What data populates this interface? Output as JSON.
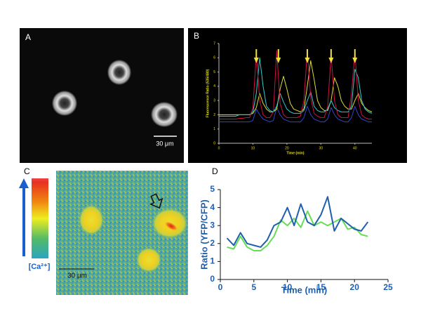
{
  "figure": {
    "panel_a": {
      "label": "A",
      "scale_bar": "30 μm"
    },
    "panel_c": {
      "label": "C",
      "scale_bar": "30 μm",
      "colorbar_label": "[Ca²⁺]"
    }
  },
  "chart_data": [
    {
      "type": "line",
      "panel_label": "B",
      "x_label": "Time (min)",
      "y_label": "Fluorescence Ratio (535/480)",
      "x": [
        0,
        1,
        2,
        3,
        4,
        5,
        6,
        7,
        8,
        9,
        10,
        11,
        12,
        13,
        14,
        15,
        16,
        17,
        18,
        19,
        20,
        21,
        22,
        23,
        24,
        25,
        26,
        27,
        28,
        29,
        30,
        31,
        32,
        33,
        34,
        35,
        36,
        37,
        38,
        39,
        40,
        41,
        42,
        43,
        44,
        45
      ],
      "series": [
        {
          "color": "#3344cc",
          "values": [
            1.5,
            1.5,
            1.5,
            1.5,
            1.5,
            1.5,
            1.5,
            1.5,
            1.5,
            1.5,
            1.6,
            2.4,
            2.0,
            1.7,
            1.6,
            1.5,
            1.6,
            2.5,
            2.0,
            1.7,
            1.6,
            1.5,
            1.5,
            1.5,
            1.5,
            1.8,
            2.6,
            2.0,
            1.7,
            1.6,
            1.5,
            1.5,
            1.7,
            2.5,
            2.0,
            1.7,
            1.6,
            1.5,
            1.5,
            1.8,
            2.6,
            2.0,
            1.7,
            1.6,
            1.5,
            1.5
          ]
        },
        {
          "color": "#dddd33",
          "values": [
            2.0,
            2.0,
            2.0,
            2.0,
            2.0,
            2.0,
            2.0,
            2.0,
            2.0,
            2.0,
            2.1,
            2.5,
            3.5,
            2.8,
            2.4,
            2.2,
            2.2,
            2.4,
            3.8,
            4.7,
            3.8,
            2.8,
            2.4,
            2.3,
            2.2,
            2.4,
            4.0,
            5.8,
            4.5,
            3.0,
            2.5,
            2.3,
            2.3,
            3.0,
            4.6,
            4.0,
            3.0,
            2.6,
            2.4,
            2.4,
            3.0,
            3.5,
            2.8,
            2.5,
            2.3,
            2.2
          ]
        },
        {
          "color": "#33cccc",
          "values": [
            1.9,
            1.9,
            1.9,
            1.9,
            1.9,
            1.9,
            2.0,
            2.0,
            2.0,
            2.0,
            2.2,
            3.5,
            6.0,
            4.0,
            2.6,
            2.3,
            2.2,
            2.6,
            3.5,
            2.9,
            2.4,
            2.2,
            2.1,
            2.1,
            2.1,
            2.3,
            3.0,
            3.6,
            2.6,
            2.3,
            2.2,
            2.2,
            2.4,
            3.0,
            2.5,
            2.3,
            2.2,
            2.2,
            2.2,
            2.6,
            5.2,
            4.6,
            3.0,
            2.4,
            2.2,
            2.1
          ]
        },
        {
          "color": "#cc1144",
          "values": [
            1.7,
            1.7,
            1.7,
            1.7,
            1.7,
            1.7,
            1.75,
            1.75,
            1.8,
            1.8,
            2.5,
            6.3,
            3.0,
            2.0,
            1.8,
            1.8,
            2.2,
            6.5,
            2.8,
            2.0,
            1.8,
            1.8,
            1.8,
            1.8,
            1.9,
            3.0,
            6.5,
            3.2,
            2.1,
            1.9,
            1.8,
            1.8,
            2.6,
            6.2,
            3.0,
            2.0,
            1.8,
            1.8,
            1.8,
            3.5,
            6.4,
            3.0,
            2.0,
            1.8,
            1.7,
            1.7
          ]
        }
      ],
      "arrows_x": [
        11,
        17.5,
        26,
        33,
        40
      ],
      "xlim": [
        0,
        45
      ],
      "xticks": [
        0,
        10,
        20,
        30,
        40
      ],
      "ylim": [
        0,
        7
      ],
      "yticks": [
        0,
        1,
        2,
        3,
        4,
        5,
        6,
        7
      ]
    },
    {
      "type": "line",
      "panel_label": "D",
      "x_label": "Time (min)",
      "y_label": "Ratio (YFP/CFP)",
      "x": [
        1,
        2,
        3,
        4,
        5,
        6,
        7,
        8,
        9,
        10,
        11,
        12,
        13,
        14,
        15,
        16,
        17,
        18,
        19,
        20,
        21,
        22
      ],
      "series": [
        {
          "color": "#66dd55",
          "values": [
            1.8,
            1.7,
            2.4,
            1.8,
            1.6,
            1.6,
            1.9,
            2.4,
            3.3,
            3.0,
            3.4,
            2.9,
            3.8,
            3.0,
            3.2,
            3.0,
            3.2,
            3.4,
            2.8,
            2.9,
            2.5,
            2.4
          ]
        },
        {
          "color": "#1f5fb0",
          "values": [
            2.3,
            1.9,
            2.6,
            2.0,
            1.9,
            1.8,
            2.2,
            3.0,
            3.2,
            4.0,
            3.0,
            4.2,
            3.2,
            3.0,
            3.6,
            4.6,
            2.7,
            3.4,
            3.1,
            2.8,
            2.7,
            3.2
          ]
        }
      ],
      "xlim": [
        0,
        25
      ],
      "xticks": [
        0,
        5,
        10,
        15,
        20,
        25
      ],
      "ylim": [
        0,
        5
      ],
      "yticks": [
        0,
        1,
        2,
        3,
        4,
        5
      ]
    }
  ]
}
